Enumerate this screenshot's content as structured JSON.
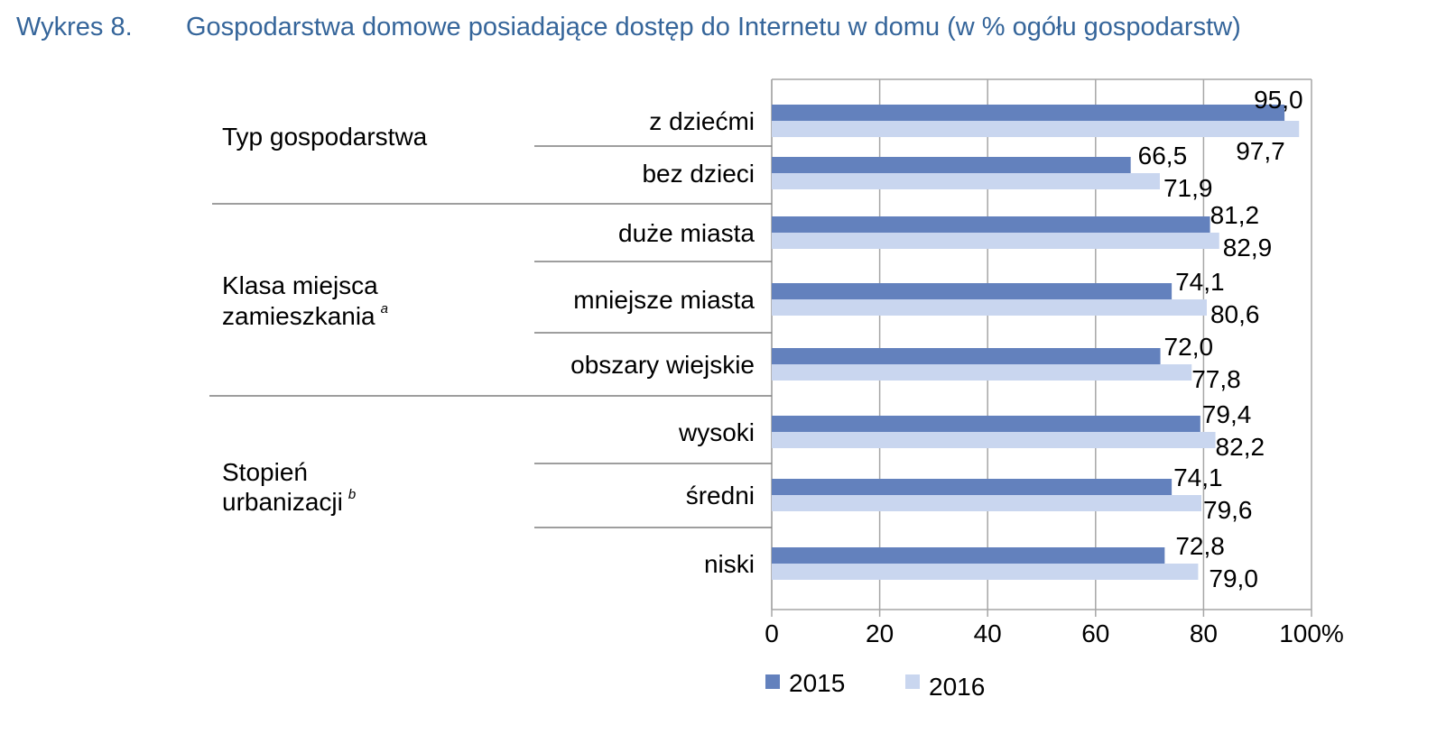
{
  "title": {
    "prefix": "Wykres 8.",
    "text": "Gospodarstwa domowe posiadające dostęp do Internetu w domu (w % ogółu gospodarstw)"
  },
  "colors": {
    "s2015": "#6381bd",
    "s2016": "#c9d6ef",
    "grid": "#a6a6a6",
    "divider": "#7f7f7f",
    "title": "#35659a"
  },
  "chart_data": {
    "type": "bar",
    "orientation": "horizontal",
    "xlim": [
      0,
      100
    ],
    "xticks": [
      "0",
      "20",
      "40",
      "60",
      "80",
      "100%"
    ],
    "groups": [
      {
        "label": "Typ gospodarstwa",
        "sup": "",
        "categories": [
          "z dziećmi",
          "bez dzieci"
        ]
      },
      {
        "label": "Klasa miejsca zamieszkania",
        "label_lines": [
          "Klasa miejsca",
          "zamieszkania"
        ],
        "sup": "a",
        "categories": [
          "duże miasta",
          "mniejsze miasta",
          "obszary wiejskie"
        ]
      },
      {
        "label": "Stopień urbanizacji",
        "label_lines": [
          "Stopień",
          "urbanizacji"
        ],
        "sup": "b",
        "categories": [
          "wysoki",
          "średni",
          "niski"
        ]
      }
    ],
    "categories": [
      "z dziećmi",
      "bez dzieci",
      "duże miasta",
      "mniejsze miasta",
      "obszary wiejskie",
      "wysoki",
      "średni",
      "niski"
    ],
    "series": [
      {
        "name": "2015",
        "values": [
          95.0,
          66.5,
          81.2,
          74.1,
          72.0,
          79.4,
          74.1,
          72.8
        ],
        "labels": [
          "95,0",
          "66,5",
          "81,2",
          "74,1",
          "72,0",
          "79,4",
          "74,1",
          "72,8"
        ]
      },
      {
        "name": "2016",
        "values": [
          97.7,
          71.9,
          82.9,
          80.6,
          77.8,
          82.2,
          79.6,
          79.0
        ],
        "labels": [
          "97,7",
          "71,9",
          "82,9",
          "80,6",
          "77,8",
          "82,2",
          "79,6",
          "79,0"
        ]
      }
    ],
    "legend_position": "bottom",
    "grid": true
  }
}
